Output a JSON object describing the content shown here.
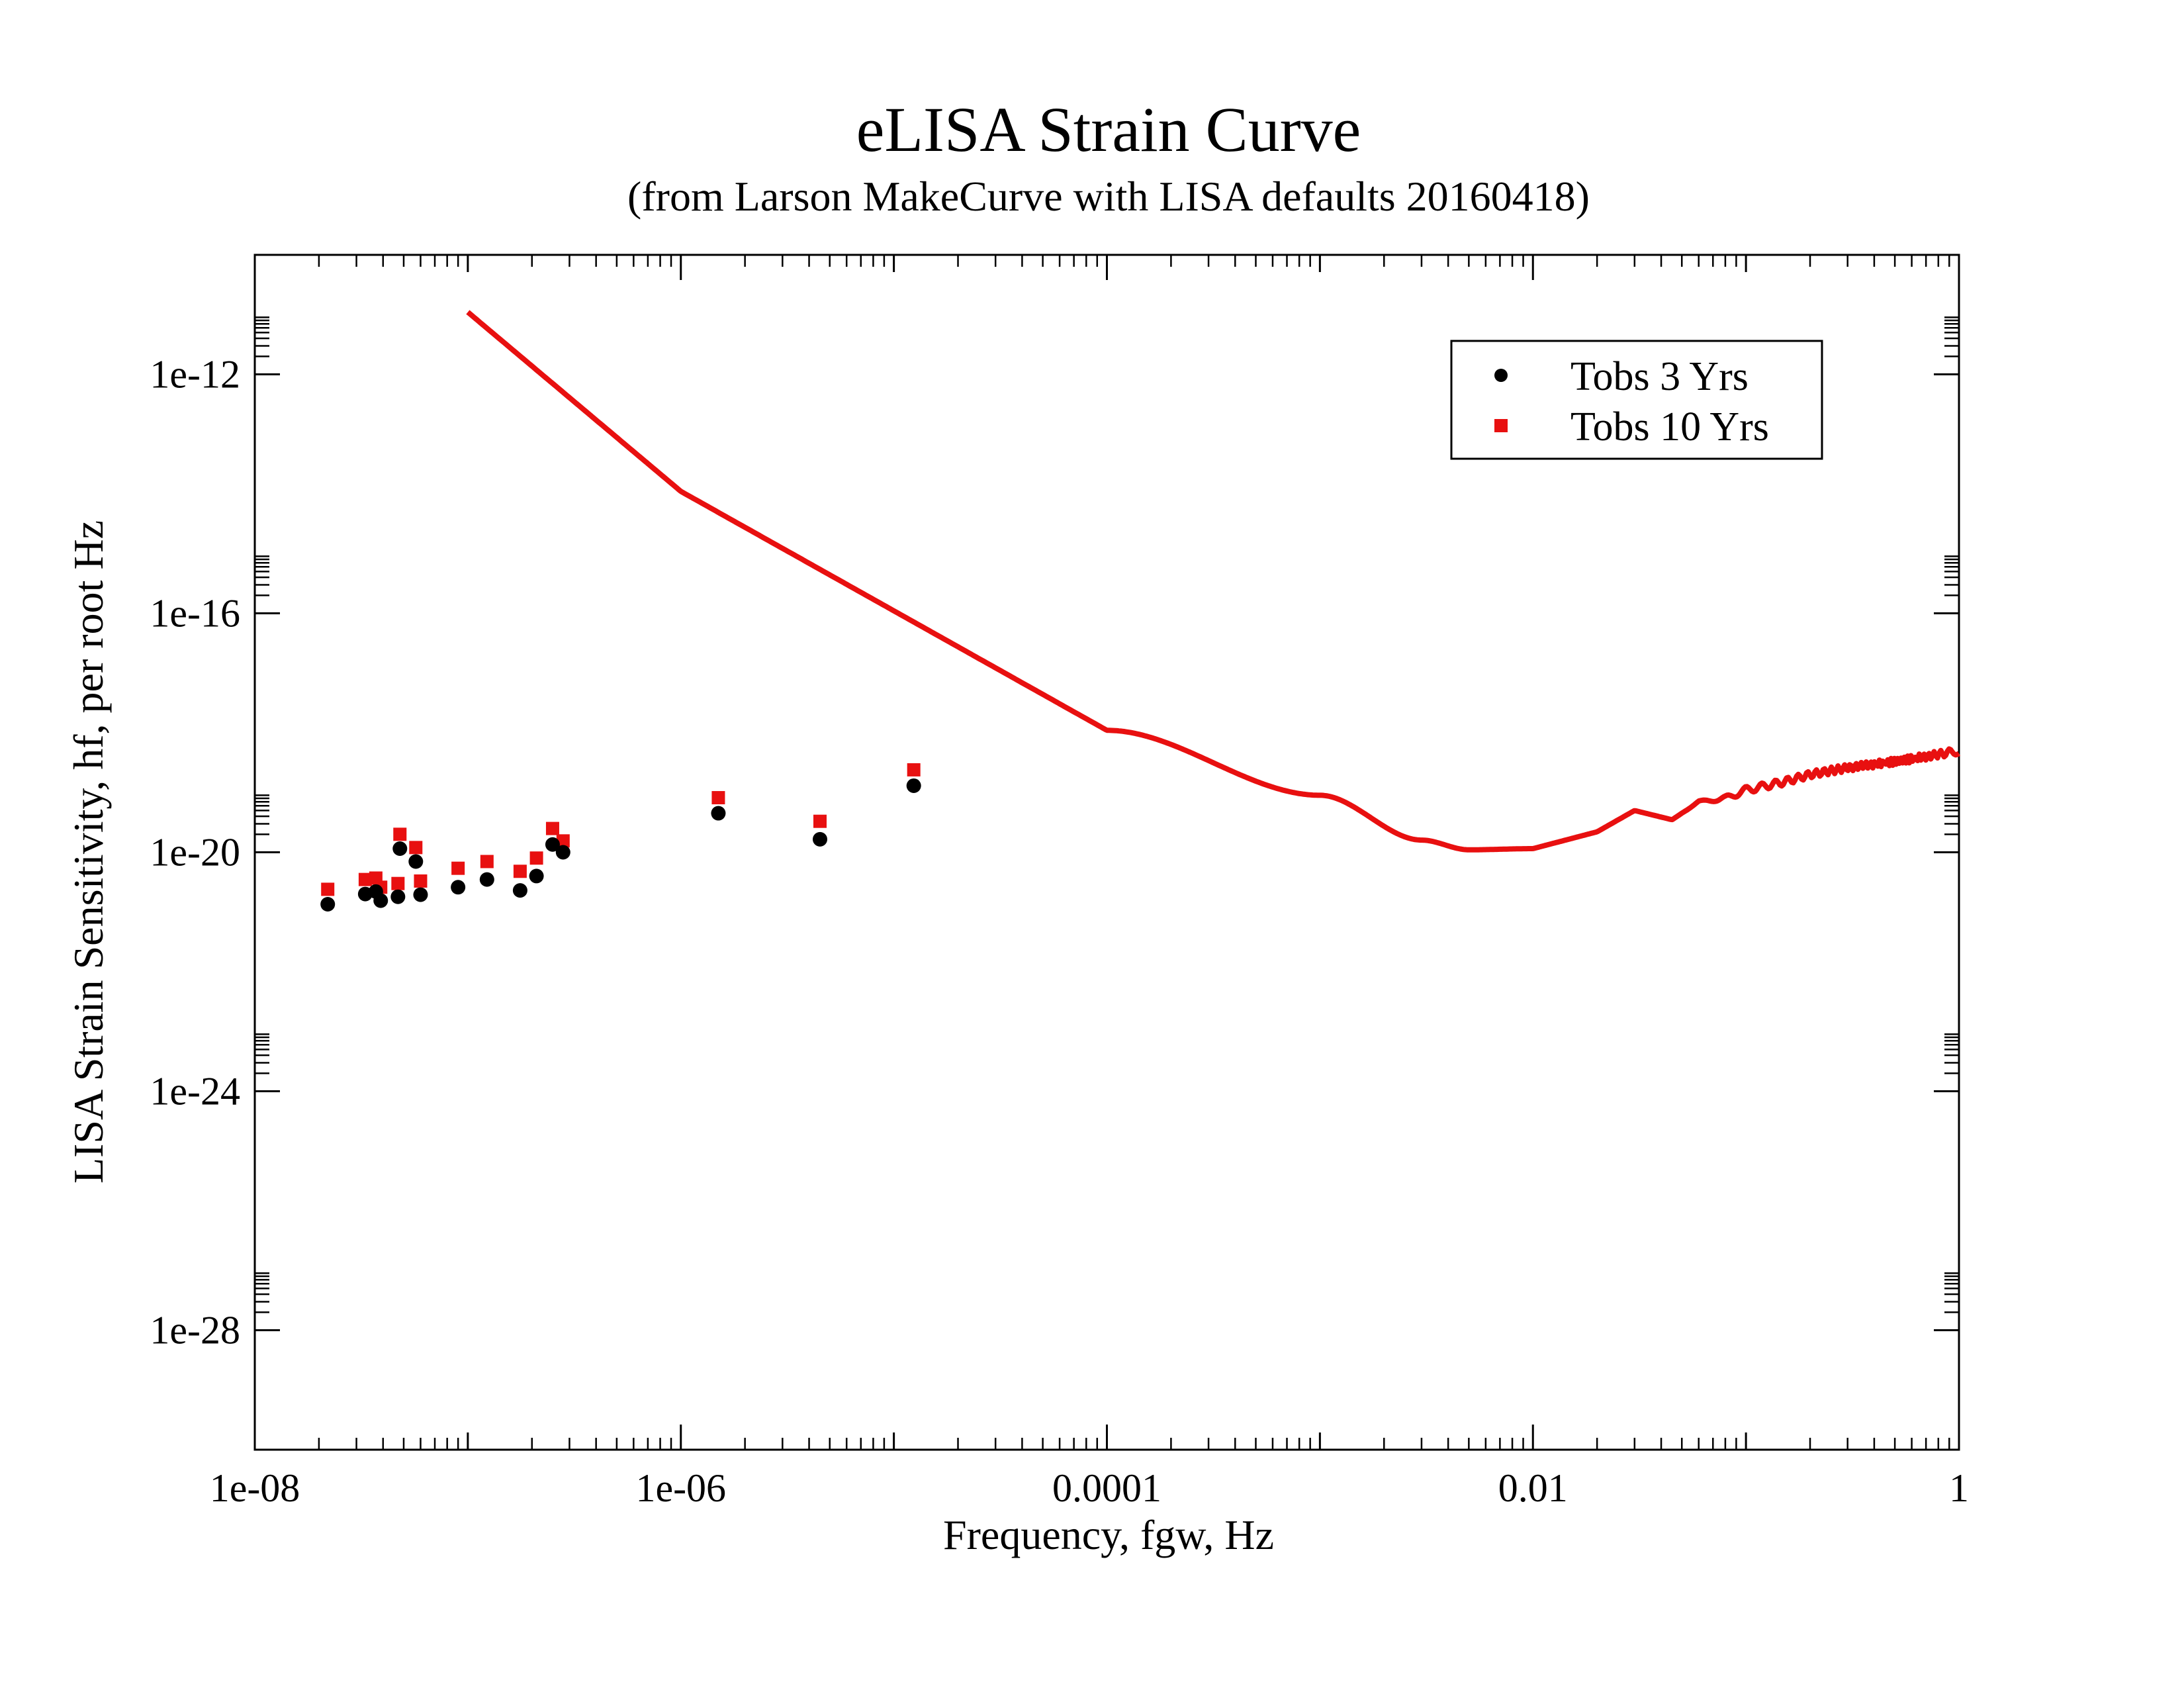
{
  "chart_data": {
    "type": "scatter",
    "title": "eLISA Strain Curve",
    "subtitle": "(from Larson MakeCurve with LISA defaults 20160418)",
    "xlabel": "Frequency, fgw, Hz",
    "ylabel": "LISA Strain Sensitivity, hf, per root Hz",
    "x_scale": "log",
    "y_scale": "log",
    "xlim": [
      1e-08,
      1
    ],
    "ylim": [
      1e-30,
      1e-10
    ],
    "x_ticks": [
      {
        "value": 1e-08,
        "label": "1e-08"
      },
      {
        "value": 1e-06,
        "label": "1e-06"
      },
      {
        "value": 0.0001,
        "label": "0.0001"
      },
      {
        "value": 0.01,
        "label": "0.01"
      },
      {
        "value": 1,
        "label": "1"
      }
    ],
    "y_ticks": [
      {
        "value": 1e-12,
        "label": "1e-12"
      },
      {
        "value": 1e-16,
        "label": "1e-16"
      },
      {
        "value": 1e-20,
        "label": "1e-20"
      },
      {
        "value": 1e-24,
        "label": "1e-24"
      },
      {
        "value": 1e-28,
        "label": "1e-28"
      }
    ],
    "grid": false,
    "legend_position": "top-right",
    "series": [
      {
        "name": "Tobs 3 Yrs",
        "marker": "circle",
        "color": "#000000",
        "x": [
          2.2e-08,
          3.3e-08,
          3.7e-08,
          3.9e-08,
          4.7e-08,
          4.8e-08,
          5.7e-08,
          6e-08,
          9e-08,
          1.23e-07,
          1.76e-07,
          2.1e-07,
          2.5e-07,
          2.8e-07,
          1.5e-06,
          4.5e-06,
          1.24e-05
        ],
        "y": [
          1.35e-21,
          2e-21,
          2.2e-21,
          1.55e-21,
          1.8e-21,
          1.15e-20,
          7e-21,
          1.95e-21,
          2.6e-21,
          3.5e-21,
          2.3e-21,
          4e-21,
          1.35e-20,
          1e-20,
          4.5e-20,
          1.65e-20,
          1.3e-19
        ]
      },
      {
        "name": "Tobs 10 Yrs",
        "marker": "square",
        "color": "#e81010",
        "x": [
          2.2e-08,
          3.3e-08,
          3.7e-08,
          3.9e-08,
          4.7e-08,
          4.8e-08,
          5.7e-08,
          6e-08,
          9e-08,
          1.23e-07,
          1.76e-07,
          2.1e-07,
          2.5e-07,
          2.8e-07,
          1.5e-06,
          4.5e-06,
          1.24e-05
        ],
        "y": [
          2.4e-21,
          3.5e-21,
          3.7e-21,
          2.6e-21,
          3e-21,
          2e-20,
          1.2e-20,
          3.3e-21,
          5.4e-21,
          7e-21,
          4.8e-21,
          8e-21,
          2.5e-20,
          1.55e-20,
          8.2e-20,
          3.3e-20,
          2.4e-19
        ]
      },
      {
        "name": "",
        "type": "line",
        "color": "#e81010",
        "x": [
          1e-07,
          1e-06,
          1e-05,
          0.0001,
          0.001,
          0.003,
          0.005,
          0.01,
          0.02,
          0.03,
          0.045,
          0.06,
          0.08,
          0.1,
          0.15,
          0.2,
          0.3,
          0.5,
          0.7,
          1
        ],
        "y": [
          1.1e-11,
          1.1e-14,
          1.1e-16,
          1.1e-18,
          9e-20,
          1.6e-20,
          1.1e-20,
          1.15e-20,
          2.2e-20,
          5e-20,
          3.5e-20,
          7e-20,
          8e-20,
          1.1e-19,
          1.5e-19,
          2e-19,
          2.6e-19,
          3.3e-19,
          4e-19,
          5e-19
        ]
      }
    ]
  }
}
